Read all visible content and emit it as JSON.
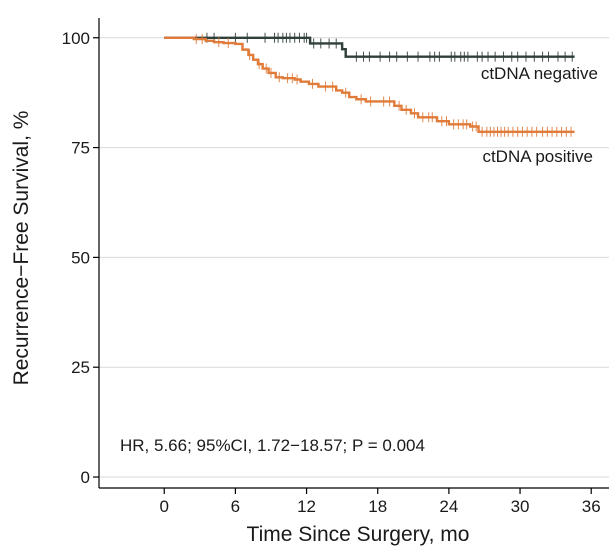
{
  "chart_data": {
    "type": "line",
    "subtype": "kaplan-meier",
    "title": "",
    "xlabel": "Time Since Surgery, mo",
    "ylabel": "Recurrence−Free Survival, %",
    "xlim": [
      -5.5,
      37.5
    ],
    "ylim": [
      -2.5,
      104.5
    ],
    "xticks": [
      0,
      6,
      12,
      18,
      24,
      30,
      36
    ],
    "yticks": [
      0,
      25,
      50,
      75,
      100
    ],
    "grid": {
      "horizontal": true,
      "vertical": false
    },
    "annotation": "HR, 5.66; 95%CI, 1.72−18.57; P = 0.004",
    "series": [
      {
        "name": "ctDNA negative",
        "color": "#2f3f3a",
        "step_x": [
          0,
          12.3,
          15,
          15.3,
          34.6
        ],
        "step_y": [
          100,
          98.7,
          97.4,
          95.7,
          95.7
        ],
        "censor_x": [
          3.6,
          4.2,
          6.0,
          7.0,
          8.5,
          9.3,
          9.6,
          10.0,
          10.3,
          10.6,
          11.0,
          11.4,
          11.8,
          12.0,
          12.6,
          13.2,
          13.9,
          14.5,
          16.2,
          16.8,
          17.3,
          18.2,
          19.0,
          19.6,
          20.5,
          21.4,
          22.4,
          22.8,
          23.2,
          24.2,
          24.5,
          25.0,
          25.3,
          25.6,
          26.4,
          26.8,
          27.3,
          27.9,
          28.6,
          29.3,
          29.8,
          30.5,
          31.2,
          31.9,
          32.4,
          33.2,
          33.8,
          34.4
        ]
      },
      {
        "name": "ctDNA positive",
        "color": "#e07b39",
        "step_x": [
          0,
          2.5,
          3.5,
          4.2,
          5.0,
          6.0,
          6.6,
          7.1,
          7.5,
          7.9,
          8.3,
          8.8,
          9.4,
          10.0,
          11.0,
          11.5,
          12.2,
          13.0,
          14.5,
          15.0,
          15.6,
          16.2,
          17.0,
          18.0,
          19.4,
          20.0,
          20.8,
          21.4,
          23.0,
          24.0,
          25.8,
          26.5,
          34.6
        ],
        "step_y": [
          100,
          99.7,
          99.3,
          99.0,
          98.8,
          98.6,
          97.3,
          96.1,
          95.0,
          94.0,
          93.0,
          92.0,
          91.0,
          90.8,
          90.5,
          90.0,
          89.5,
          88.9,
          88.0,
          87.5,
          86.5,
          86.0,
          85.5,
          85.5,
          84.5,
          83.6,
          82.8,
          81.9,
          81.0,
          80.3,
          79.8,
          78.6,
          78.6
        ],
        "censor_x": [
          2.7,
          3.2,
          4.6,
          5.4,
          7.2,
          8.0,
          8.6,
          9.0,
          9.7,
          10.4,
          10.8,
          11.2,
          12.5,
          13.6,
          14.2,
          15.3,
          16.6,
          17.4,
          18.5,
          19.0,
          19.8,
          20.4,
          21.1,
          21.8,
          22.3,
          22.6,
          23.4,
          23.8,
          24.4,
          24.8,
          25.2,
          25.5,
          26.0,
          26.3,
          26.8,
          27.2,
          27.5,
          27.8,
          28.1,
          28.4,
          28.7,
          29.0,
          29.4,
          29.8,
          30.2,
          30.6,
          31.0,
          31.4,
          31.9,
          32.3,
          32.7,
          33.1,
          33.5,
          33.9,
          34.3
        ]
      }
    ]
  }
}
